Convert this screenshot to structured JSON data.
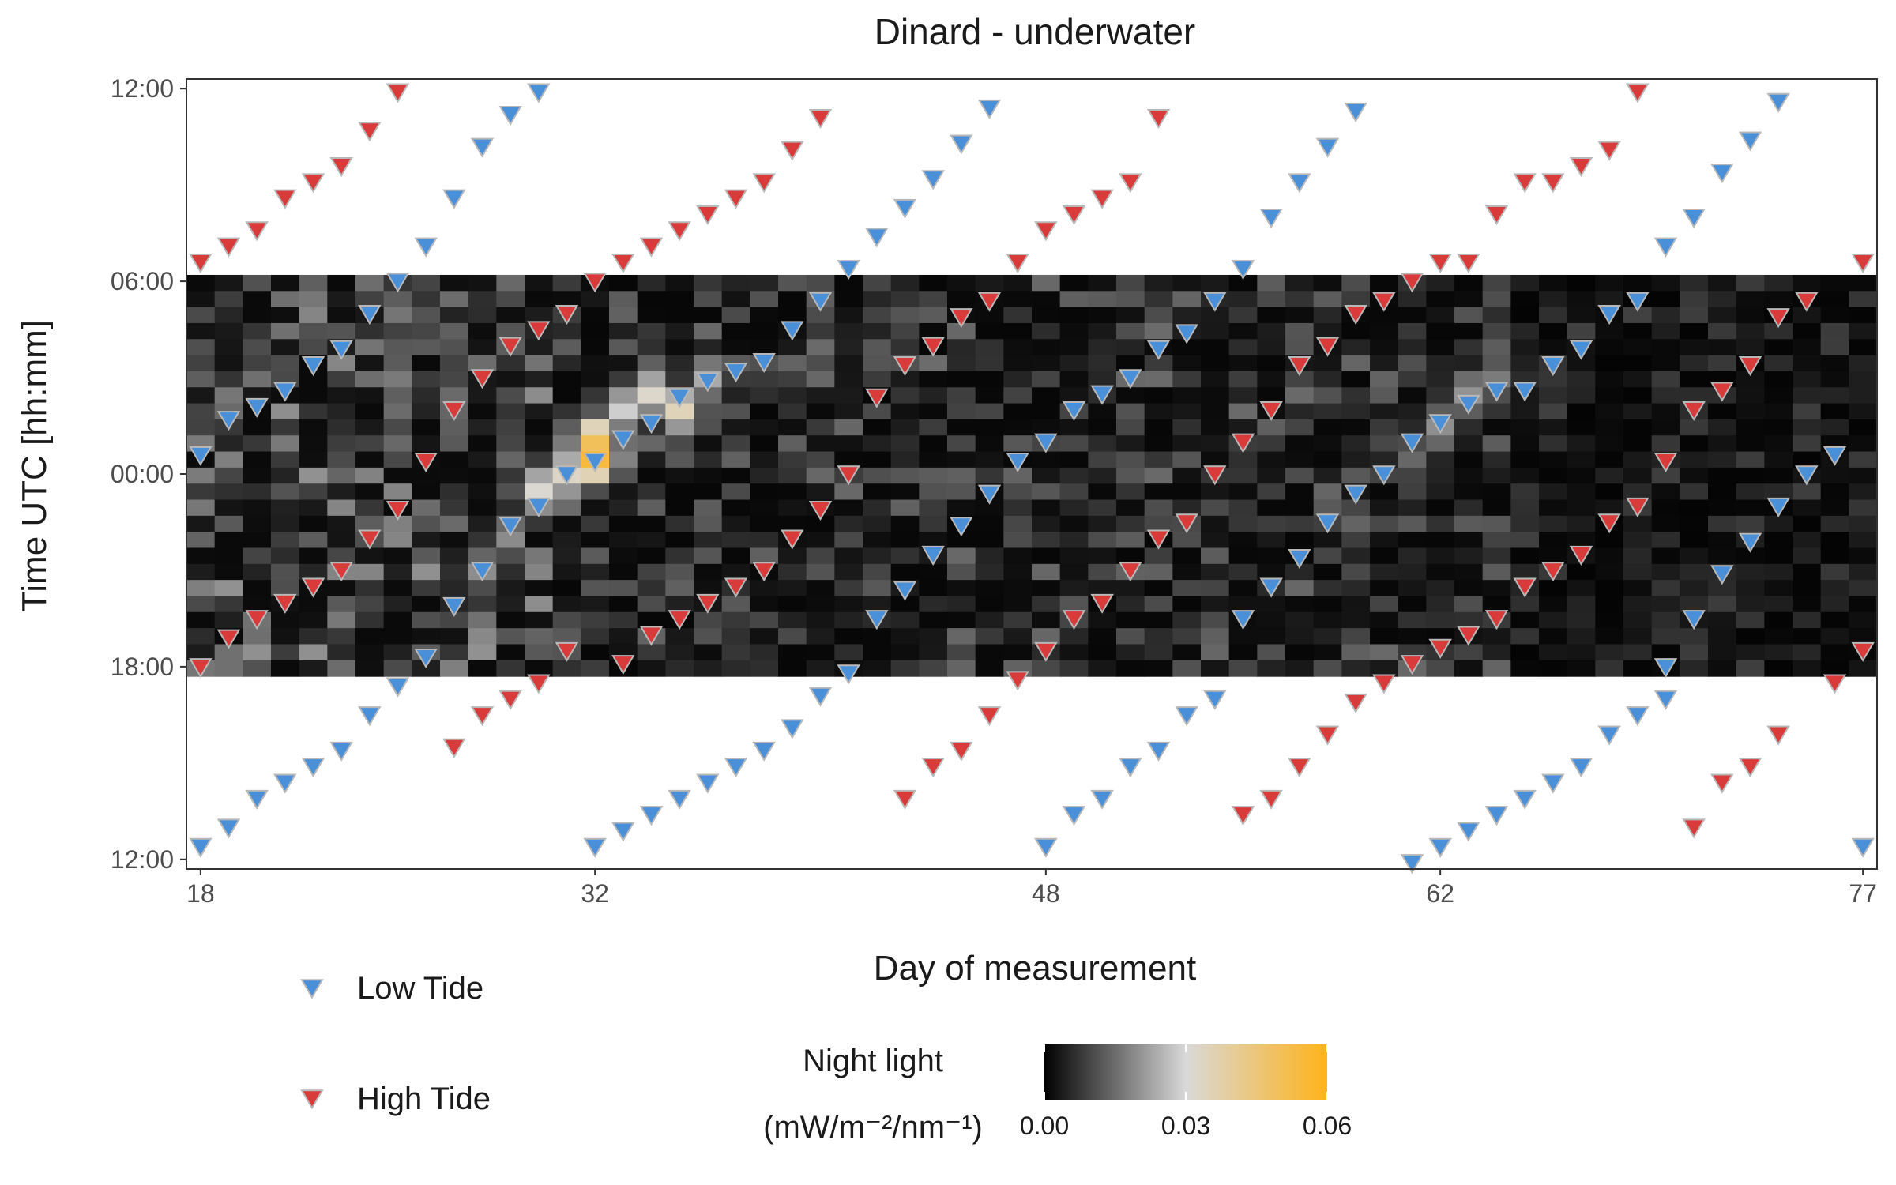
{
  "chart_data": {
    "type": "heatmap",
    "title": "Dinard - underwater",
    "xlabel": "Day of measurement",
    "ylabel": "Time UTC [hh:mm]",
    "x_ticks": [
      "18",
      "32",
      "48",
      "62",
      "77"
    ],
    "x_tick_values": [
      18,
      32,
      48,
      62,
      77
    ],
    "xlim": [
      17.5,
      77.5
    ],
    "y_ticks": [
      "12:00",
      "06:00",
      "00:00",
      "18:00",
      "12:00"
    ],
    "y_tick_hours": [
      12,
      6,
      0,
      -6,
      -12
    ],
    "ylim_hours": [
      -12.3,
      12.3
    ],
    "y_axis_direction": "time runs downward from 12:00 (noon) through 00:00 (midnight) to 12:00 (noon)",
    "night_band_hours": [
      -6.3,
      6.2
    ],
    "heatmap": {
      "cell_hours": 0.5,
      "value_range": [
        0,
        0.06
      ],
      "description": "Night light intensity per day and half-hour; mostly near 0.00 with brighter streaks",
      "hotspots": [
        {
          "day": 32,
          "hour": 0.5,
          "value": 0.06
        },
        {
          "day": 32,
          "hour": 1.0,
          "value": 0.055
        },
        {
          "day": 31,
          "hour": 0.0,
          "value": 0.038
        },
        {
          "day": 30,
          "hour": -0.5,
          "value": 0.036
        },
        {
          "day": 33,
          "hour": 2.0,
          "value": 0.032
        },
        {
          "day": 34,
          "hour": 2.5,
          "value": 0.036
        },
        {
          "day": 35,
          "hour": 2.0,
          "value": 0.036
        },
        {
          "day": 36,
          "hour": 3.0,
          "value": 0.025
        },
        {
          "day": 63,
          "hour": 2.5,
          "value": 0.022
        },
        {
          "day": 64,
          "hour": 3.0,
          "value": 0.018
        },
        {
          "day": 62,
          "hour": 1.5,
          "value": 0.02
        },
        {
          "day": 61,
          "hour": 0.5,
          "value": 0.016
        },
        {
          "day": 59,
          "hour": -1.5,
          "value": 0.014
        },
        {
          "day": 28,
          "hour": -3.0,
          "value": 0.02
        }
      ]
    },
    "colorbar": {
      "title_line1": "Night light",
      "title_line2": "(mW/m⁻²/nm⁻¹)",
      "ticks": [
        "0.00",
        "0.03",
        "0.06"
      ],
      "tick_values": [
        0,
        0.03,
        0.06
      ],
      "colors": [
        "#000000",
        "#d9d9d9",
        "#ffb31a"
      ]
    },
    "series": [
      {
        "name": "Low Tide",
        "color": "#4a90d9",
        "marker": "triangle-down",
        "points": [
          [
            18,
            0.6
          ],
          [
            19,
            1.7
          ],
          [
            20,
            2.1
          ],
          [
            21,
            2.6
          ],
          [
            22,
            3.4
          ],
          [
            23,
            3.9
          ],
          [
            24,
            5.0
          ],
          [
            25,
            6.0
          ],
          [
            26,
            7.1
          ],
          [
            27,
            8.6
          ],
          [
            28,
            10.2
          ],
          [
            29,
            11.2
          ],
          [
            30,
            11.9
          ],
          [
            25,
            -6.6
          ],
          [
            26,
            -5.7
          ],
          [
            27,
            -4.1
          ],
          [
            28,
            -3.0
          ],
          [
            29,
            -1.6
          ],
          [
            30,
            -1.0
          ],
          [
            31,
            0.0
          ],
          [
            32,
            0.4
          ],
          [
            33,
            1.1
          ],
          [
            34,
            1.6
          ],
          [
            35,
            2.4
          ],
          [
            36,
            2.9
          ],
          [
            37,
            3.2
          ],
          [
            38,
            3.5
          ],
          [
            39,
            4.5
          ],
          [
            40,
            5.4
          ],
          [
            41,
            6.4
          ],
          [
            42,
            7.4
          ],
          [
            43,
            8.3
          ],
          [
            44,
            9.2
          ],
          [
            45,
            10.3
          ],
          [
            46,
            11.4
          ],
          [
            41,
            -6.2
          ],
          [
            42,
            -4.5
          ],
          [
            43,
            -3.6
          ],
          [
            44,
            -2.5
          ],
          [
            45,
            -1.6
          ],
          [
            46,
            -0.6
          ],
          [
            47,
            0.4
          ],
          [
            48,
            1.0
          ],
          [
            49,
            2.0
          ],
          [
            50,
            2.5
          ],
          [
            51,
            3.0
          ],
          [
            52,
            3.9
          ],
          [
            53,
            4.4
          ],
          [
            54,
            5.4
          ],
          [
            55,
            6.4
          ],
          [
            56,
            8.0
          ],
          [
            57,
            9.1
          ],
          [
            58,
            10.2
          ],
          [
            59,
            11.3
          ],
          [
            55,
            -4.5
          ],
          [
            56,
            -3.5
          ],
          [
            57,
            -2.6
          ],
          [
            58,
            -1.5
          ],
          [
            59,
            -0.6
          ],
          [
            60,
            0.0
          ],
          [
            61,
            1.0
          ],
          [
            62,
            1.6
          ],
          [
            63,
            2.2
          ],
          [
            64,
            2.6
          ],
          [
            65,
            2.6
          ],
          [
            66,
            3.4
          ],
          [
            67,
            3.9
          ],
          [
            68,
            5.0
          ],
          [
            69,
            5.4
          ],
          [
            70,
            7.1
          ],
          [
            71,
            8.0
          ],
          [
            72,
            9.4
          ],
          [
            73,
            10.4
          ],
          [
            74,
            11.6
          ],
          [
            70,
            -6.0
          ],
          [
            71,
            -4.5
          ],
          [
            72,
            -3.1
          ],
          [
            73,
            -2.1
          ],
          [
            74,
            -1.0
          ],
          [
            75,
            0.0
          ],
          [
            76,
            0.6
          ],
          [
            18,
            -11.6
          ],
          [
            19,
            -11.0
          ],
          [
            20,
            -10.1
          ],
          [
            21,
            -9.6
          ],
          [
            22,
            -9.1
          ],
          [
            23,
            -8.6
          ],
          [
            24,
            -7.5
          ],
          [
            25,
            -6.6
          ],
          [
            32,
            -11.6
          ],
          [
            33,
            -11.1
          ],
          [
            34,
            -10.6
          ],
          [
            35,
            -10.1
          ],
          [
            36,
            -9.6
          ],
          [
            37,
            -9.1
          ],
          [
            38,
            -8.6
          ],
          [
            39,
            -7.9
          ],
          [
            40,
            -6.9
          ],
          [
            48,
            -11.6
          ],
          [
            49,
            -10.6
          ],
          [
            50,
            -10.1
          ],
          [
            51,
            -9.1
          ],
          [
            52,
            -8.6
          ],
          [
            53,
            -7.5
          ],
          [
            54,
            -7.0
          ],
          [
            61,
            -12.1
          ],
          [
            62,
            -11.6
          ],
          [
            63,
            -11.1
          ],
          [
            64,
            -10.6
          ],
          [
            65,
            -10.1
          ],
          [
            66,
            -9.6
          ],
          [
            67,
            -9.1
          ],
          [
            68,
            -8.1
          ],
          [
            69,
            -7.5
          ],
          [
            70,
            -7.0
          ],
          [
            77,
            -11.6
          ]
        ]
      },
      {
        "name": "High Tide",
        "color": "#d93a3a",
        "marker": "triangle-down",
        "points": [
          [
            18,
            6.6
          ],
          [
            19,
            7.1
          ],
          [
            20,
            7.6
          ],
          [
            21,
            8.6
          ],
          [
            22,
            9.1
          ],
          [
            23,
            9.6
          ],
          [
            24,
            10.7
          ],
          [
            25,
            11.9
          ],
          [
            18,
            -6.0
          ],
          [
            19,
            -5.1
          ],
          [
            20,
            -4.5
          ],
          [
            21,
            -4.0
          ],
          [
            22,
            -3.5
          ],
          [
            23,
            -3.0
          ],
          [
            24,
            -2.0
          ],
          [
            25,
            -1.1
          ],
          [
            26,
            0.4
          ],
          [
            27,
            2.0
          ],
          [
            28,
            3.0
          ],
          [
            29,
            4.0
          ],
          [
            30,
            4.5
          ],
          [
            31,
            5.0
          ],
          [
            32,
            6.0
          ],
          [
            27,
            -8.5
          ],
          [
            28,
            -7.5
          ],
          [
            29,
            -7.0
          ],
          [
            30,
            -6.5
          ],
          [
            31,
            -5.5
          ],
          [
            33,
            6.6
          ],
          [
            34,
            7.1
          ],
          [
            35,
            7.6
          ],
          [
            36,
            8.1
          ],
          [
            37,
            8.6
          ],
          [
            38,
            9.1
          ],
          [
            39,
            10.1
          ],
          [
            40,
            11.1
          ],
          [
            33,
            -5.9
          ],
          [
            34,
            -5.0
          ],
          [
            35,
            -4.5
          ],
          [
            36,
            -4.0
          ],
          [
            37,
            -3.5
          ],
          [
            38,
            -3.0
          ],
          [
            39,
            -2.0
          ],
          [
            40,
            -1.1
          ],
          [
            41,
            0.0
          ],
          [
            42,
            2.4
          ],
          [
            43,
            3.4
          ],
          [
            44,
            4.0
          ],
          [
            45,
            4.9
          ],
          [
            46,
            5.4
          ],
          [
            43,
            -10.1
          ],
          [
            44,
            -9.1
          ],
          [
            45,
            -8.6
          ],
          [
            46,
            -7.5
          ],
          [
            47,
            6.6
          ],
          [
            48,
            7.6
          ],
          [
            49,
            8.1
          ],
          [
            50,
            8.6
          ],
          [
            51,
            9.1
          ],
          [
            52,
            11.1
          ],
          [
            47,
            -6.4
          ],
          [
            48,
            -5.5
          ],
          [
            49,
            -4.5
          ],
          [
            50,
            -4.0
          ],
          [
            51,
            -3.0
          ],
          [
            52,
            -2.0
          ],
          [
            53,
            -1.5
          ],
          [
            54,
            0.0
          ],
          [
            55,
            1.0
          ],
          [
            56,
            2.0
          ],
          [
            57,
            3.4
          ],
          [
            58,
            4.0
          ],
          [
            55,
            -10.6
          ],
          [
            56,
            -10.1
          ],
          [
            57,
            -9.1
          ],
          [
            58,
            -8.1
          ],
          [
            59,
            -7.1
          ],
          [
            59,
            5.0
          ],
          [
            60,
            5.4
          ],
          [
            61,
            6.0
          ],
          [
            62,
            6.6
          ],
          [
            63,
            6.6
          ],
          [
            64,
            8.1
          ],
          [
            65,
            9.1
          ],
          [
            66,
            9.1
          ],
          [
            67,
            9.6
          ],
          [
            68,
            10.1
          ],
          [
            69,
            11.9
          ],
          [
            60,
            -6.5
          ],
          [
            61,
            -5.9
          ],
          [
            62,
            -5.4
          ],
          [
            63,
            -5.0
          ],
          [
            64,
            -4.5
          ],
          [
            65,
            -3.5
          ],
          [
            66,
            -3.0
          ],
          [
            67,
            -2.5
          ],
          [
            68,
            -1.5
          ],
          [
            69,
            -1.0
          ],
          [
            70,
            0.4
          ],
          [
            71,
            2.0
          ],
          [
            72,
            2.6
          ],
          [
            73,
            3.4
          ],
          [
            74,
            4.9
          ],
          [
            75,
            5.4
          ],
          [
            71,
            -11.0
          ],
          [
            72,
            -9.6
          ],
          [
            73,
            -9.1
          ],
          [
            74,
            -8.1
          ],
          [
            76,
            -6.5
          ],
          [
            77,
            -5.5
          ],
          [
            77,
            6.6
          ]
        ]
      }
    ],
    "legend": {
      "placement": "bottom",
      "entries": [
        {
          "label": "Low Tide",
          "color": "#4a90d9"
        },
        {
          "label": "High Tide",
          "color": "#d93a3a"
        }
      ]
    },
    "grid": false
  }
}
